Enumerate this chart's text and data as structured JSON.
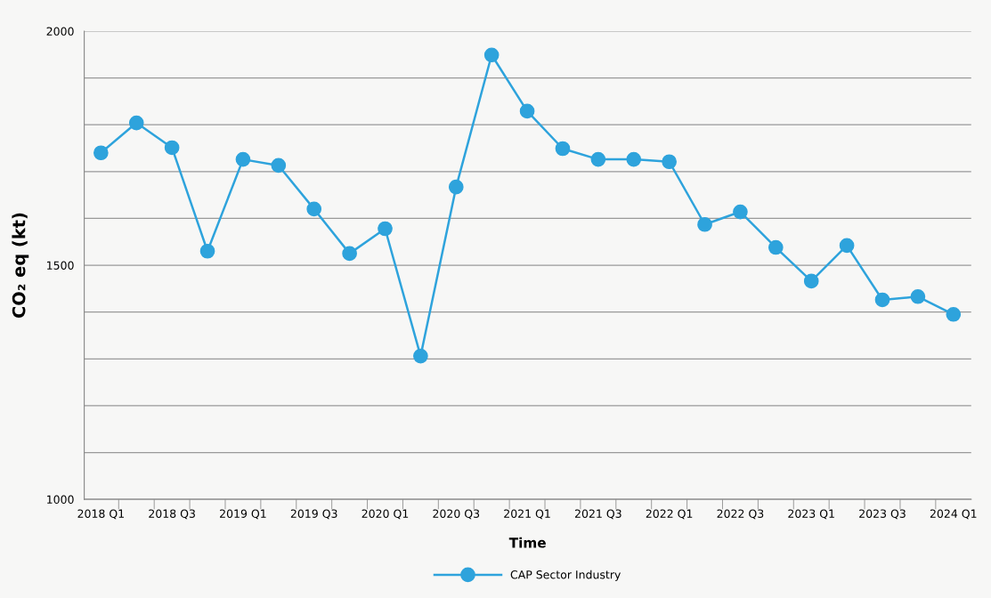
{
  "chart_data": {
    "type": "line",
    "xlabel": "Time",
    "ylabel": "CO₂ eq (kt)",
    "categories": [
      "2018 Q1",
      null,
      "2018 Q3",
      null,
      "2019 Q1",
      null,
      "2019 Q3",
      null,
      "2020 Q1",
      null,
      "2020 Q3",
      null,
      "2021 Q1",
      null,
      "2021 Q3",
      null,
      "2022 Q1",
      null,
      "2022 Q3",
      null,
      "2023 Q1",
      null,
      "2023 Q3",
      null,
      "2024 Q1"
    ],
    "series": [
      {
        "name": "CAP Sector Industry",
        "color": "#2ea3dc",
        "values": [
          1740,
          1804,
          1751,
          1530,
          1726,
          1713,
          1620,
          1525,
          1578,
          1306,
          1667,
          1949,
          1829,
          1749,
          1726,
          1726,
          1721,
          1587,
          1614,
          1538,
          1466,
          1542,
          1426,
          1433,
          1395
        ]
      }
    ],
    "ylim": [
      1000,
      2000
    ],
    "yticks": [
      1000,
      {
        "value": 1100,
        "label": null
      },
      {
        "value": 1200,
        "label": null
      },
      {
        "value": 1300,
        "label": null
      },
      {
        "value": 1400,
        "label": null
      },
      1500,
      {
        "value": 1600,
        "label": null
      },
      {
        "value": 1700,
        "label": null
      },
      {
        "value": 1800,
        "label": null
      },
      {
        "value": 1900,
        "label": null
      },
      2000
    ],
    "grid": "y",
    "legend": "bottom",
    "marker": "circle",
    "line_style": "solid"
  }
}
